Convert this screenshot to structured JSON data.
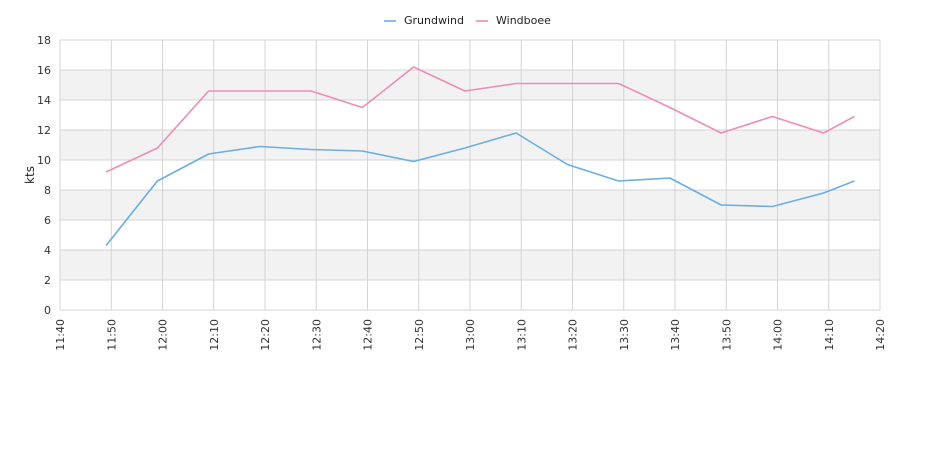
{
  "chart_data": {
    "type": "line",
    "title": "",
    "xlabel": "",
    "ylabel": "kts",
    "ylim": [
      0,
      18
    ],
    "y_ticks": [
      "0",
      "2",
      "4",
      "6",
      "8",
      "10",
      "12",
      "14",
      "16",
      "18"
    ],
    "x_ticks": [
      "11:40",
      "11:50",
      "12:00",
      "12:10",
      "12:20",
      "12:30",
      "12:40",
      "12:50",
      "13:00",
      "13:10",
      "13:20",
      "13:30",
      "13:40",
      "13:50",
      "14:00",
      "14:10",
      "14:20"
    ],
    "xlim": [
      "11:40",
      "14:20"
    ],
    "grid": true,
    "alternating_bands": true,
    "legend_position": "top-center",
    "x": [
      "11:49",
      "11:59",
      "12:09",
      "12:19",
      "12:29",
      "12:39",
      "12:49",
      "12:59",
      "13:09",
      "13:19",
      "13:29",
      "13:39",
      "13:49",
      "13:59",
      "14:09",
      "14:15"
    ],
    "series": [
      {
        "name": "Grundwind",
        "color": "#6aaee8",
        "values": [
          4.3,
          8.6,
          10.4,
          10.9,
          10.7,
          10.6,
          9.9,
          10.8,
          11.8,
          9.7,
          8.6,
          8.8,
          7.0,
          6.9,
          7.8,
          8.6
        ]
      },
      {
        "name": "Windboee",
        "color": "#f08cb8",
        "values": [
          9.2,
          10.8,
          14.6,
          14.6,
          14.6,
          13.5,
          16.2,
          14.6,
          15.1,
          15.1,
          15.1,
          13.5,
          11.8,
          12.9,
          11.8,
          12.9
        ]
      }
    ]
  },
  "colors": {
    "band": "#f2f2f2",
    "grid": "#d4d4d4",
    "axis": "#cccccc"
  }
}
